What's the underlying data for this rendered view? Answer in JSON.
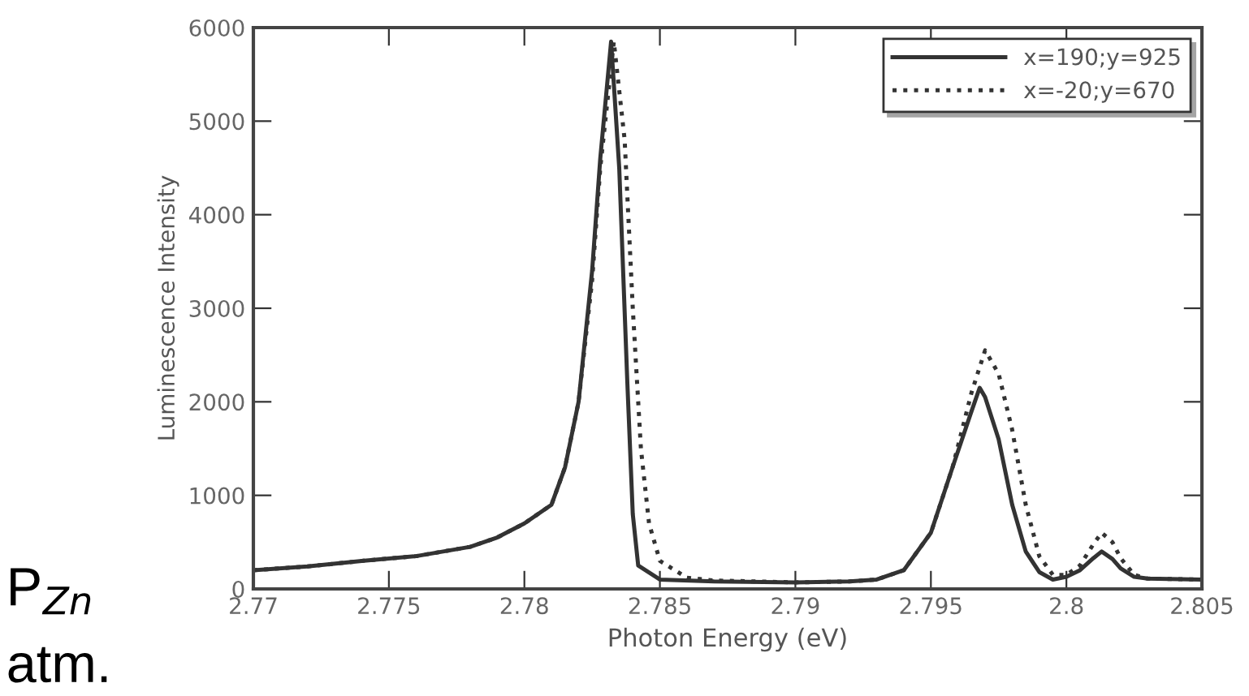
{
  "chart_data": {
    "type": "line",
    "xlabel": "Photon Energy (eV)",
    "ylabel": "Luminescence Intensity",
    "xlim": [
      2.77,
      2.805
    ],
    "xticks": [
      2.77,
      2.775,
      2.78,
      2.785,
      2.79,
      2.795,
      2.8,
      2.805
    ],
    "ylim": [
      0,
      6000
    ],
    "yticks": [
      0,
      1000,
      2000,
      3000,
      4000,
      5000,
      6000
    ],
    "grid": false,
    "legend": "top right",
    "annotations": [
      "P$_{Zn}$",
      "atm."
    ],
    "series": [
      {
        "name": "x=190;y=925",
        "color": "#333333",
        "line_style": "solid",
        "x": [
          2.77,
          2.772,
          2.774,
          2.776,
          2.778,
          2.779,
          2.78,
          2.781,
          2.7815,
          2.782,
          2.7825,
          2.7828,
          2.7832,
          2.7835,
          2.7838,
          2.784,
          2.7842,
          2.785,
          2.787,
          2.79,
          2.792,
          2.793,
          2.794,
          2.795,
          2.7958,
          2.7965,
          2.7968,
          2.797,
          2.7975,
          2.798,
          2.7985,
          2.799,
          2.7995,
          2.8,
          2.8005,
          2.801,
          2.8013,
          2.8017,
          2.802,
          2.8025,
          2.803,
          2.805
        ],
        "values": [
          200,
          240,
          300,
          350,
          450,
          550,
          700,
          900,
          1300,
          2000,
          3400,
          4600,
          5850,
          4500,
          2200,
          800,
          250,
          100,
          80,
          70,
          80,
          100,
          200,
          600,
          1300,
          1900,
          2150,
          2050,
          1600,
          900,
          400,
          180,
          100,
          130,
          200,
          330,
          400,
          320,
          220,
          130,
          110,
          100
        ]
      },
      {
        "name": "x=-20;y=670",
        "color": "#333333",
        "line_style": "dotted",
        "x": [
          2.77,
          2.772,
          2.774,
          2.776,
          2.778,
          2.779,
          2.78,
          2.781,
          2.7815,
          2.782,
          2.7825,
          2.7828,
          2.7833,
          2.7837,
          2.784,
          2.7843,
          2.7846,
          2.785,
          2.786,
          2.787,
          2.79,
          2.792,
          2.793,
          2.794,
          2.795,
          2.7958,
          2.7965,
          2.797,
          2.7975,
          2.798,
          2.7985,
          2.799,
          2.7995,
          2.8,
          2.8005,
          2.801,
          2.8013,
          2.8017,
          2.802,
          2.8025,
          2.803,
          2.805
        ],
        "values": [
          200,
          240,
          300,
          350,
          450,
          550,
          700,
          900,
          1300,
          2000,
          3300,
          4500,
          5850,
          4800,
          3000,
          1500,
          700,
          300,
          120,
          90,
          70,
          80,
          100,
          200,
          600,
          1300,
          2100,
          2550,
          2300,
          1700,
          900,
          350,
          150,
          150,
          250,
          480,
          600,
          500,
          330,
          150,
          110,
          100
        ]
      }
    ]
  }
}
